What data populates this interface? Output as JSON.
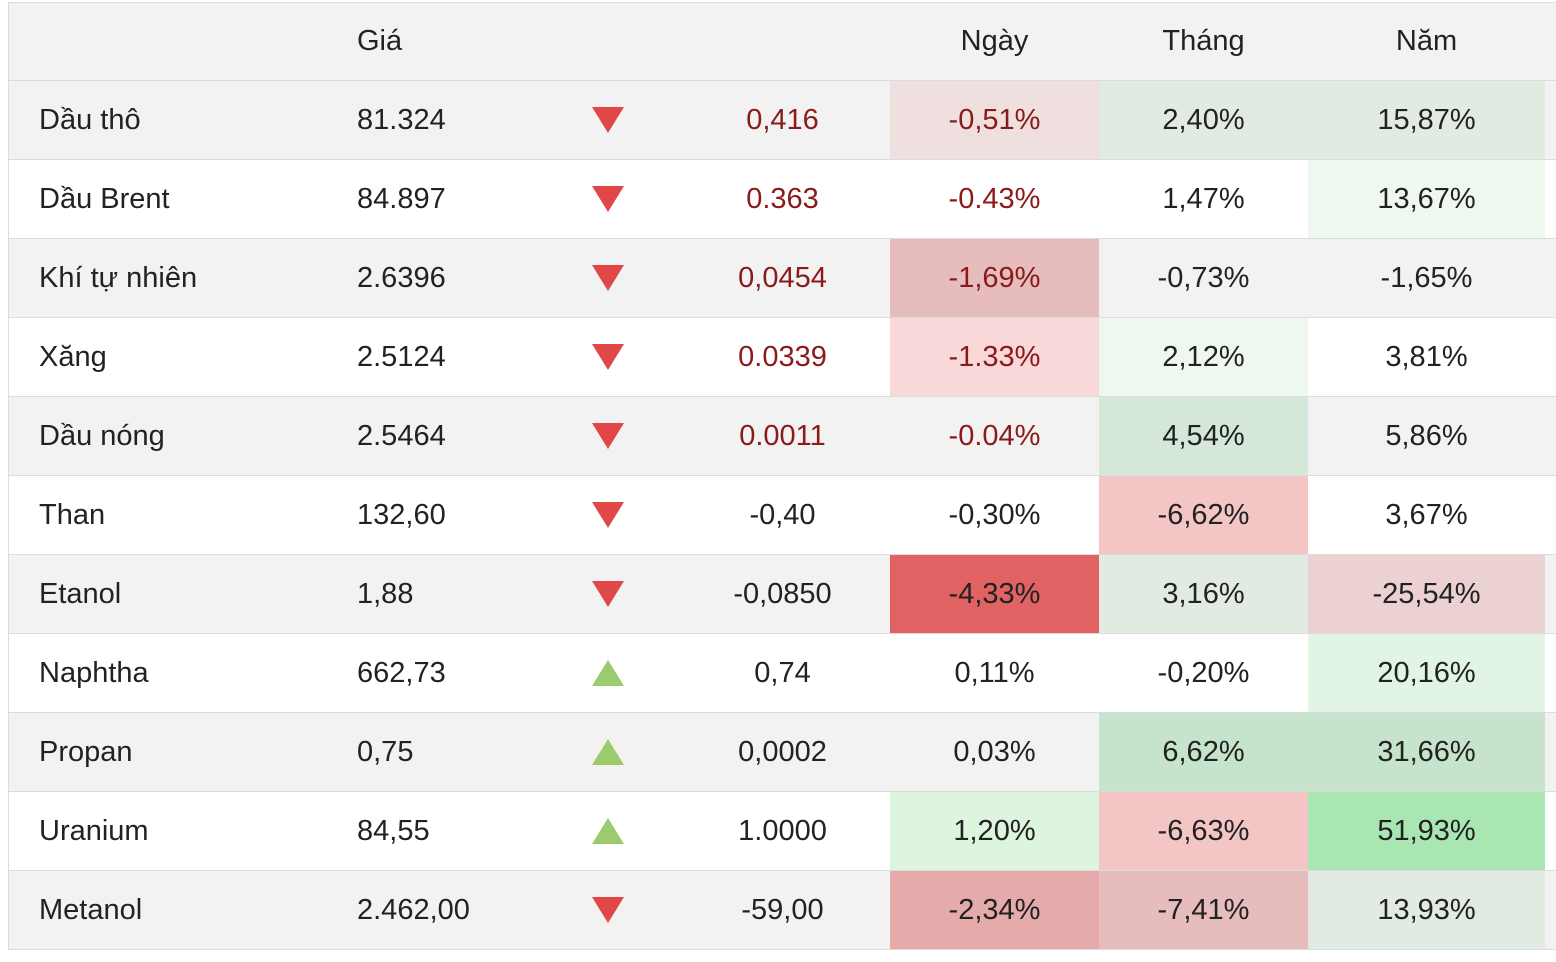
{
  "header": {
    "price": "Giá",
    "day": "Ngày",
    "month": "Tháng",
    "year": "Năm"
  },
  "colors": {
    "arrow_down": "#e04848",
    "arrow_up": "#9ccb6b",
    "dark_red_text": "#8b1a1a"
  },
  "rows": [
    {
      "name": "Dầu thô",
      "price": "81.324",
      "direction": "down",
      "change": "0,416",
      "day": "-0,51%",
      "month": "2,40%",
      "year": "15,87%",
      "day_bg": "#efe0df",
      "month_bg": "#e1ebe2",
      "year_bg": "#e1ebe2"
    },
    {
      "name": "Dầu Brent",
      "price": "84.897",
      "direction": "down",
      "change": "0.363",
      "day": "-0.43%",
      "month": "1,47%",
      "year": "13,67%",
      "day_bg": "",
      "month_bg": "",
      "year_bg": "#eef8ef"
    },
    {
      "name": "Khí tự nhiên",
      "price": "2.6396",
      "direction": "down",
      "change": "0,0454",
      "day": "-1,69%",
      "month": "-0,73%",
      "year": "-1,65%",
      "day_bg": "#e6bcbc",
      "month_bg": "",
      "year_bg": ""
    },
    {
      "name": "Xăng",
      "price": "2.5124",
      "direction": "down",
      "change": "0.0339",
      "day": "-1.33%",
      "month": "2,12%",
      "year": "3,81%",
      "day_bg": "#f8d8d8",
      "month_bg": "#eef8ef",
      "year_bg": ""
    },
    {
      "name": "Dầu nóng",
      "price": "2.5464",
      "direction": "down",
      "change": "0.0011",
      "day": "-0.04%",
      "month": "4,54%",
      "year": "5,86%",
      "day_bg": "",
      "month_bg": "#d5e7d8",
      "year_bg": ""
    },
    {
      "name": "Than",
      "price": "132,60",
      "direction": "down",
      "change": "-0,40",
      "day": "-0,30%",
      "month": "-6,62%",
      "year": "3,67%",
      "day_bg": "",
      "month_bg": "#f3c5c5",
      "year_bg": ""
    },
    {
      "name": "Etanol",
      "price": "1,88",
      "direction": "down",
      "change": "-0,0850",
      "day": "-4,33%",
      "month": "3,16%",
      "year": "-25,54%",
      "day_bg": "#e06262",
      "month_bg": "#e1ebe2",
      "year_bg": "#ebd1d1"
    },
    {
      "name": "Naphtha",
      "price": "662,73",
      "direction": "up",
      "change": "0,74",
      "day": "0,11%",
      "month": "-0,20%",
      "year": "20,16%",
      "day_bg": "",
      "month_bg": "",
      "year_bg": "#e2f5e4"
    },
    {
      "name": "Propan",
      "price": "0,75",
      "direction": "up",
      "change": "0,0002",
      "day": "0,03%",
      "month": "6,62%",
      "year": "31,66%",
      "day_bg": "",
      "month_bg": "#c6e4cb",
      "year_bg": "#c6e4cb"
    },
    {
      "name": "Uranium",
      "price": "84,55",
      "direction": "up",
      "change": "1.0000",
      "day": "1,20%",
      "month": "-6,63%",
      "year": "51,93%",
      "day_bg": "#ddf4df",
      "month_bg": "#f3c5c5",
      "year_bg": "#aae6b2"
    },
    {
      "name": "Metanol",
      "price": "2.462,00",
      "direction": "down",
      "change": "-59,00",
      "day": "-2,34%",
      "month": "-7,41%",
      "year": "13,93%",
      "day_bg": "#e5aaaa",
      "month_bg": "#e6bcbc",
      "year_bg": "#e1ebe2"
    }
  ]
}
